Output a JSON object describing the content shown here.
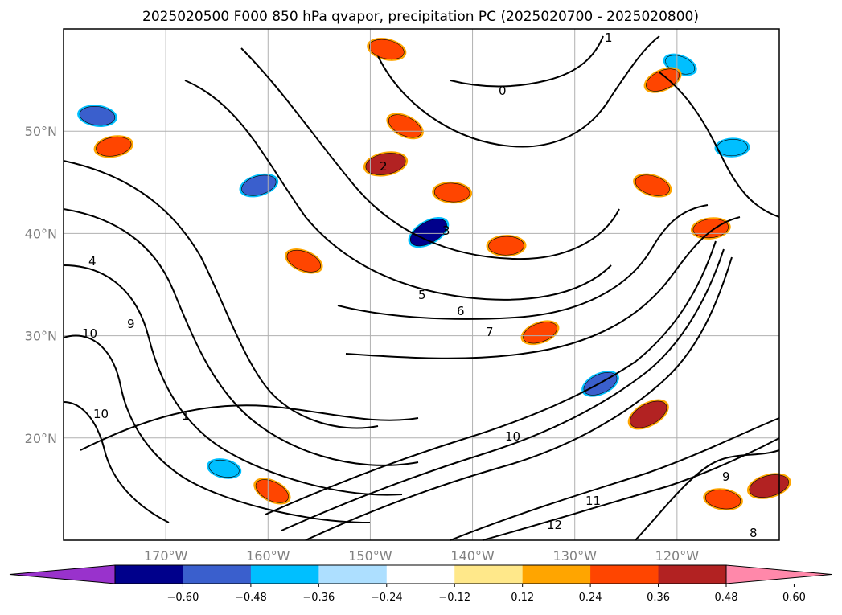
{
  "chart_data": {
    "type": "heatmap",
    "title": "2025020500 F000 850 hPa qvapor, precipitation PC (2025020700 - 2025020800)",
    "projection": "lat-lon map, North Pacific",
    "lon_range": [
      -180,
      -110
    ],
    "lat_range": [
      10,
      60
    ],
    "grid": true,
    "lat_ticks": [
      {
        "value": 50,
        "label": "50°N"
      },
      {
        "value": 40,
        "label": "40°N"
      },
      {
        "value": 30,
        "label": "30°N"
      },
      {
        "value": 20,
        "label": "20°N"
      }
    ],
    "lon_ticks": [
      {
        "value": -170,
        "label": "170°W"
      },
      {
        "value": -160,
        "label": "160°W"
      },
      {
        "value": -150,
        "label": "150°W"
      },
      {
        "value": -140,
        "label": "140°W"
      },
      {
        "value": -130,
        "label": "130°W"
      },
      {
        "value": -120,
        "label": "120°W"
      }
    ],
    "colorbar": {
      "extend": "both",
      "ticks": [
        "−0.60",
        "−0.48",
        "−0.36",
        "−0.24",
        "−0.12",
        "0.12",
        "0.24",
        "0.36",
        "0.48",
        "0.60"
      ],
      "colors": [
        "#9932CC",
        "#00008B",
        "#3A5FCD",
        "#00BFFF",
        "#ADDFFF",
        "#FFFFFF",
        "#FFE88A",
        "#FFA500",
        "#FF4500",
        "#B22222",
        "#FF88AA"
      ]
    },
    "contour_labels": [
      "0",
      "1",
      "2",
      "3",
      "4",
      "5",
      "6",
      "7",
      "8",
      "9",
      "10",
      "11",
      "12"
    ],
    "shaded_regions": [
      {
        "lon": -144.3,
        "lat": 40.1,
        "value": -0.5
      },
      {
        "lon": -176.7,
        "lat": 51.5,
        "value": -0.4
      },
      {
        "lon": -160.9,
        "lat": 44.7,
        "value": -0.4
      },
      {
        "lon": -119.7,
        "lat": 56.5,
        "value": -0.3
      },
      {
        "lon": -114.6,
        "lat": 48.4,
        "value": -0.3
      },
      {
        "lon": -127.5,
        "lat": 25.3,
        "value": -0.4
      },
      {
        "lon": -164.3,
        "lat": 17.0,
        "value": -0.3
      },
      {
        "lon": -148.5,
        "lat": 46.8,
        "value": 0.5
      },
      {
        "lon": -146.6,
        "lat": 50.5,
        "value": 0.4
      },
      {
        "lon": -142.0,
        "lat": 44.0,
        "value": 0.4
      },
      {
        "lon": -133.4,
        "lat": 30.3,
        "value": 0.4
      },
      {
        "lon": -122.4,
        "lat": 44.7,
        "value": 0.4
      },
      {
        "lon": -116.7,
        "lat": 40.5,
        "value": 0.4
      },
      {
        "lon": -122.8,
        "lat": 22.3,
        "value": 0.5
      },
      {
        "lon": -115.5,
        "lat": 14.0,
        "value": 0.4
      },
      {
        "lon": -111.0,
        "lat": 15.3,
        "value": 0.5
      },
      {
        "lon": -156.5,
        "lat": 37.3,
        "value": 0.4
      },
      {
        "lon": -136.7,
        "lat": 38.8,
        "value": 0.4
      },
      {
        "lon": -121.4,
        "lat": 55.0,
        "value": 0.4
      },
      {
        "lon": -148.4,
        "lat": 58.0,
        "value": 0.4
      },
      {
        "lon": -175.1,
        "lat": 48.5,
        "value": 0.4
      },
      {
        "lon": -159.6,
        "lat": 14.8,
        "value": 0.4
      }
    ]
  }
}
